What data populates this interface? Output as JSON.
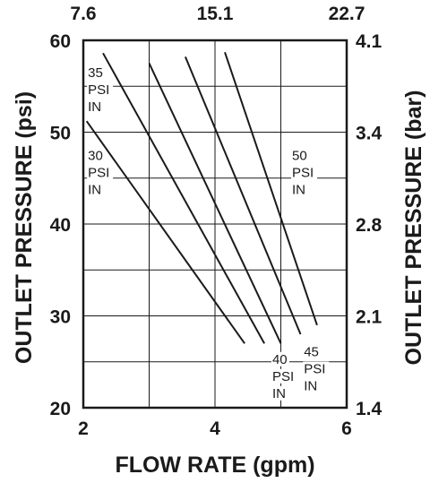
{
  "chart_data": {
    "type": "line",
    "xlabel": "FLOW RATE (gpm)",
    "ylabel": "OUTLET PRESSURE (psi)",
    "ylabel_right": "OUTLET PRESSURE (bar)",
    "xlim": [
      2,
      6
    ],
    "ylim": [
      20,
      60
    ],
    "x_ticks": [
      "2",
      "4",
      "6"
    ],
    "x_ticks_top": [
      "7.6",
      "15.1",
      "22.7"
    ],
    "y_ticks": [
      "20",
      "30",
      "40",
      "50",
      "60"
    ],
    "y_ticks_right": [
      "1.4",
      "2.1",
      "2.8",
      "3.4",
      "4.1"
    ],
    "grid": true,
    "series": [
      {
        "label": [
          "30",
          "PSI",
          "IN"
        ],
        "points": [
          [
            2.05,
            51.2
          ],
          [
            4.45,
            27.0
          ]
        ]
      },
      {
        "label": [
          "35",
          "PSI",
          "IN"
        ],
        "points": [
          [
            2.3,
            58.6
          ],
          [
            4.75,
            27.0
          ]
        ]
      },
      {
        "label": [
          "40",
          "PSI",
          "IN"
        ],
        "points": [
          [
            3.0,
            57.5
          ],
          [
            5.0,
            27.0
          ]
        ]
      },
      {
        "label": [
          "45",
          "PSI",
          "IN"
        ],
        "points": [
          [
            3.55,
            58.2
          ],
          [
            5.3,
            28.0
          ]
        ]
      },
      {
        "label": [
          "50",
          "PSI",
          "IN"
        ],
        "points": [
          [
            4.15,
            58.7
          ],
          [
            5.55,
            29.0
          ]
        ]
      }
    ]
  }
}
